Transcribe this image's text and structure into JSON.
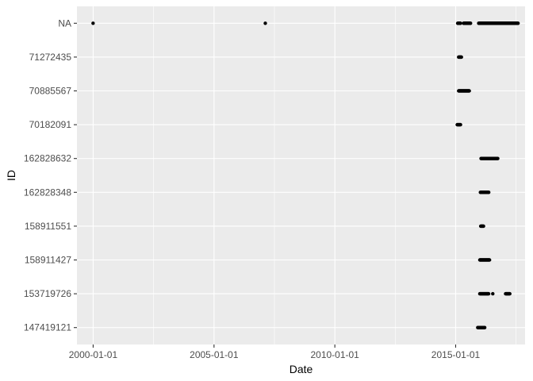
{
  "chart_data": {
    "type": "scatter",
    "title": "",
    "xlabel": "Date",
    "ylabel": "ID",
    "x_ticks": [
      "2000-01-01",
      "2005-01-01",
      "2010-01-01",
      "2015-01-01"
    ],
    "xlim": [
      "1999-05-01",
      "2017-11-15"
    ],
    "y_categories": [
      "147419121",
      "153719726",
      "158911427",
      "158911551",
      "162828348",
      "162828632",
      "70182091",
      "70885567",
      "71272435",
      "NA"
    ],
    "grid": true,
    "legend": "none",
    "panel_color": "#ebebeb",
    "grid_color": "#ffffff",
    "point_color": "#000000",
    "series": [
      {
        "id": "NA",
        "points": [
          "1999-12-31",
          "2007-02-15"
        ],
        "ranges": [
          [
            "2015-02-01",
            "2015-03-15"
          ],
          [
            "2015-05-01",
            "2015-08-15"
          ],
          [
            "2015-12-15",
            "2017-08-01"
          ]
        ]
      },
      {
        "id": "71272435",
        "points": [],
        "ranges": [
          [
            "2015-02-15",
            "2015-04-01"
          ]
        ]
      },
      {
        "id": "70885567",
        "points": [],
        "ranges": [
          [
            "2015-02-15",
            "2015-08-01"
          ]
        ]
      },
      {
        "id": "70182091",
        "points": [],
        "ranges": [
          [
            "2015-01-25",
            "2015-03-20"
          ]
        ]
      },
      {
        "id": "162828632",
        "points": [],
        "ranges": [
          [
            "2016-01-20",
            "2016-10-01"
          ]
        ]
      },
      {
        "id": "162828348",
        "points": [],
        "ranges": [
          [
            "2016-01-10",
            "2016-05-15"
          ]
        ]
      },
      {
        "id": "158911551",
        "points": [],
        "ranges": [
          [
            "2016-01-15",
            "2016-03-01"
          ]
        ]
      },
      {
        "id": "158911427",
        "points": [],
        "ranges": [
          [
            "2016-01-01",
            "2016-06-01"
          ]
        ]
      },
      {
        "id": "153719726",
        "points": [
          "2016-07-15"
        ],
        "ranges": [
          [
            "2016-01-01",
            "2016-05-15"
          ],
          [
            "2017-01-25",
            "2017-04-01"
          ]
        ]
      },
      {
        "id": "147419121",
        "points": [],
        "ranges": [
          [
            "2015-12-01",
            "2016-03-15"
          ]
        ]
      }
    ]
  }
}
